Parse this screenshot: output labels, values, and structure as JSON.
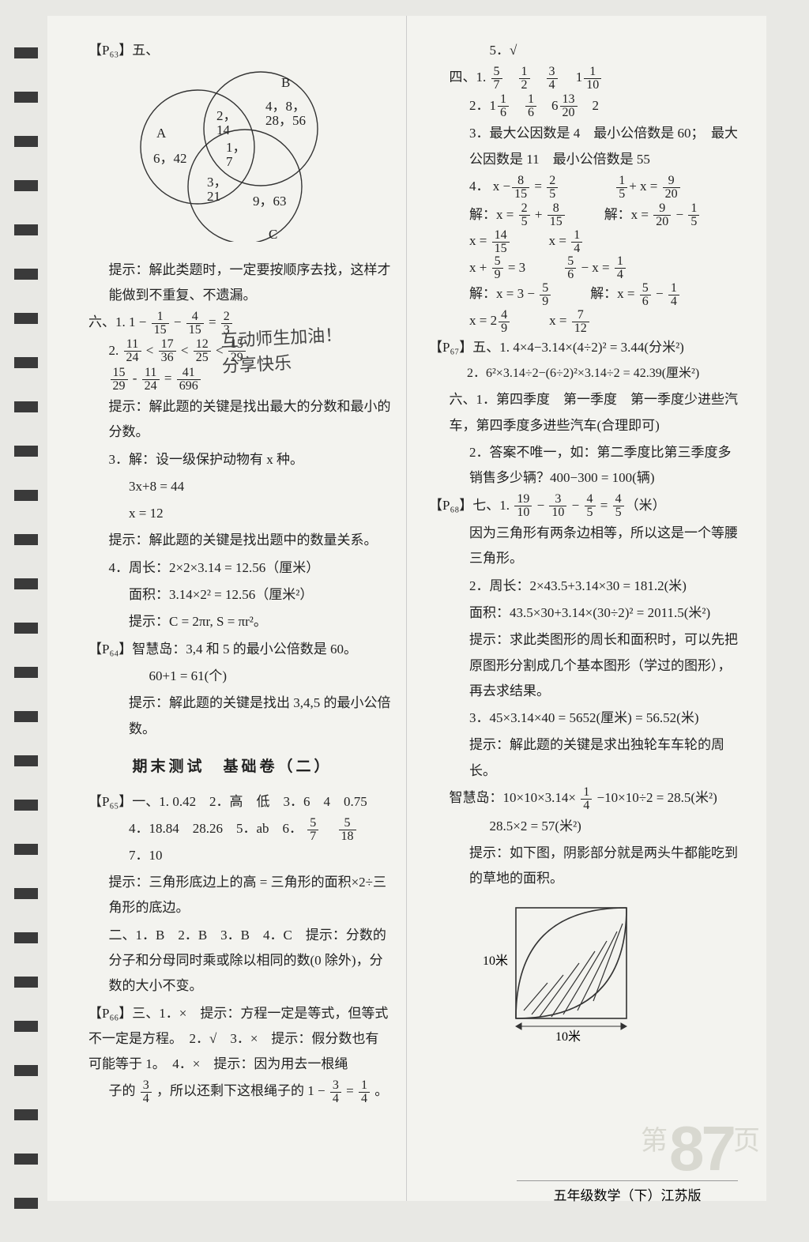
{
  "marks_count": 27,
  "venn": {
    "label_A": "A",
    "label_B": "B",
    "label_C": "C",
    "a_only": "6，42",
    "b_only": "4，8，\n28，56",
    "c_only": "9，63",
    "ab": "2，\n14",
    "ac": "3，\n21",
    "center": "1，\n7",
    "stroke": "#333"
  },
  "left": {
    "p63_tag": "【P₆₃】五、",
    "tip1": "提示：解此类题时，一定要按顺序去找，这样才能做到不重复、不遗漏。",
    "six_label": "六、1.",
    "six1_expr_a": "1",
    "six1_f1n": "1",
    "six1_f1d": "15",
    "six1_f2n": "4",
    "six1_f2d": "15",
    "six1_eq": "=",
    "six1_f3n": "2",
    "six1_f3d": "3",
    "six2_label": "2.",
    "chain_f": [
      {
        "n": "11",
        "d": "24"
      },
      {
        "n": "17",
        "d": "36"
      },
      {
        "n": "12",
        "d": "25"
      },
      {
        "n": "15",
        "d": "29"
      }
    ],
    "chain2_f": [
      {
        "n": "15",
        "d": "29"
      },
      {
        "n": "11",
        "d": "24"
      },
      {
        "n": "41",
        "d": "696"
      }
    ],
    "tip2": "提示：解此题的关键是找出最大的分数和最小的分数。",
    "six3_a": "3．解：设一级保护动物有 x 种。",
    "six3_b": "3x+8 = 44",
    "six3_c": "x = 12",
    "tip3": "提示：解此题的关键是找出题中的数量关系。",
    "six4_a": "4．周长：2×2×3.14 = 12.56（厘米）",
    "six4_b": "面积：3.14×2² = 12.56（厘米²）",
    "six4_c": "提示：C = 2πr, S = πr²。",
    "p64_tag": "【P₆₄】智慧岛",
    "p64_a": "：3,4 和 5 的最小公倍数是 60。",
    "p64_b": "60+1 = 61(个)",
    "p64_c": "提示：解此题的关键是找出 3,4,5 的最小公倍数。",
    "title": "期末测试　基础卷（二）",
    "p65_tag": "【P₆₅】一、1.",
    "p65_row1": "0.42　2．高　低　3．6　4　0.75",
    "p65_row2_a": "4．18.84　28.26　5．ab　6．",
    "p65_r2_f1n": "5",
    "p65_r2_f1d": "7",
    "p65_r2_f2n": "5",
    "p65_r2_f2d": "18",
    "p65_r2_tail": "　7．10",
    "p65_tip": "提示：三角形底边上的高 = 三角形的面积×2÷三角形的底边。",
    "p65_two": "二、1．B　2．B　3．B　4．C　提示：分数的分子和分母同时乘或除以相同的数(0 除外)，分数的大小不变。",
    "p66_tag": "【P₆₆】三、1．×",
    "p66_a": "　提示：方程一定是等式，但等式不一定是方程。　2．√　3．×　提示：假分数也有可能等于 1。　4．×　提示：因为用去一根绳",
    "p66_b_a": "子的",
    "p66_b_f1n": "3",
    "p66_b_f1d": "4",
    "p66_b_mid": "，所以还剩下这根绳子的 1 −",
    "p66_b_f2n": "3",
    "p66_b_f2d": "4",
    "p66_b_eq": " = ",
    "p66_b_f3n": "1",
    "p66_b_f3d": "4",
    "p66_b_end": "。"
  },
  "right": {
    "five": "5．√",
    "four_label": "四、1.",
    "f4_1": [
      {
        "n": "5",
        "d": "7"
      },
      {
        "n": "1",
        "d": "2"
      },
      {
        "n": "3",
        "d": "4"
      }
    ],
    "f4_1_tail_a": "1",
    "f4_1_tail_n": "1",
    "f4_1_tail_d": "10",
    "f4_2_a": "2．1",
    "f4_2": [
      {
        "n": "1",
        "d": "6"
      },
      {
        "n": "1",
        "d": "6"
      }
    ],
    "f4_2_b": "6",
    "f4_2_c_n": "13",
    "f4_2_c_d": "20",
    "f4_2_tail": "　2",
    "f4_3": "3．最大公因数是 4　最小公倍数是 60；　最大公因数是 11　最小公倍数是 55",
    "eq4_label": "4．",
    "eqs": {
      "l1a_pre": "x −",
      "l1a_f1": {
        "n": "8",
        "d": "15"
      },
      "l1a_mid": " = ",
      "l1a_f2": {
        "n": "2",
        "d": "5"
      },
      "l1b_f1": {
        "n": "1",
        "d": "5"
      },
      "l1b_mid": "+ x = ",
      "l1b_f2": {
        "n": "9",
        "d": "20"
      },
      "l2a_pre": "解：x = ",
      "l2a_f1": {
        "n": "2",
        "d": "5"
      },
      "l2a_mid": " + ",
      "l2a_f2": {
        "n": "8",
        "d": "15"
      },
      "l2b_pre": "解：x = ",
      "l2b_f1": {
        "n": "9",
        "d": "20"
      },
      "l2b_mid": " − ",
      "l2b_f2": {
        "n": "1",
        "d": "5"
      },
      "l3a_pre": "x = ",
      "l3a_f": {
        "n": "14",
        "d": "15"
      },
      "l3b_pre": "x = ",
      "l3b_f": {
        "n": "1",
        "d": "4"
      },
      "l4a_pre": "x + ",
      "l4a_f1": {
        "n": "5",
        "d": "9"
      },
      "l4a_mid": " = 3",
      "l4b_f1": {
        "n": "5",
        "d": "6"
      },
      "l4b_mid": " − x = ",
      "l4b_f2": {
        "n": "1",
        "d": "4"
      },
      "l5a_pre": "解：x = 3 − ",
      "l5a_f": {
        "n": "5",
        "d": "9"
      },
      "l5b_pre": "解：x = ",
      "l5b_f1": {
        "n": "5",
        "d": "6"
      },
      "l5b_mid": " − ",
      "l5b_f2": {
        "n": "1",
        "d": "4"
      },
      "l6a_pre": "x = 2",
      "l6a_f": {
        "n": "4",
        "d": "9"
      },
      "l6b_pre": "x = ",
      "l6b_f": {
        "n": "7",
        "d": "12"
      }
    },
    "p67_tag": "【P₆₇】五、1.",
    "p67_1": "4×4−3.14×(4÷2)² = 3.44(分米²)",
    "p67_2": "2．6²×3.14÷2−(6÷2)²×3.14÷2 = 42.39(厘米²)",
    "p67_six": "六、1．第四季度　第一季度　第一季度少进些汽车，第四季度多进些汽车(合理即可)",
    "p67_six2": "2．答案不唯一，如：第二季度比第三季度多销售多少辆？400−300 = 100(辆)",
    "p68_tag": "【P₆₈】七、1.",
    "p68_1_f": [
      {
        "n": "19",
        "d": "10"
      },
      {
        "n": "3",
        "d": "10"
      },
      {
        "n": "4",
        "d": "5"
      },
      {
        "n": "4",
        "d": "5"
      }
    ],
    "p68_1_tail": "（米）",
    "p68_1b": "因为三角形有两条边相等，所以这是一个等腰三角形。",
    "p68_2a": "2．周长：2×43.5+3.14×30 = 181.2(米)",
    "p68_2b": "面积：43.5×30+3.14×(30÷2)² = 2011.5(米²)",
    "p68_tip": "提示：求此类图形的周长和面积时，可以先把原图形分割成几个基本图形（学过的图形），再去求结果。",
    "p68_3": "3．45×3.14×40 = 5652(厘米) = 56.52(米)",
    "p68_3tip": "提示：解此题的关键是求出独轮车车轮的周长。",
    "zhd_label": "智慧岛：",
    "zhd_a": "10×10×3.14×",
    "zhd_f": {
      "n": "1",
      "d": "4"
    },
    "zhd_b": "−10×10÷2 = 28.5(米²)",
    "zhd_c": "28.5×2 = 57(米²)",
    "zhd_tip": "提示：如下图，阴影部分就是两头牛都能吃到的草地的面积。",
    "leaf": {
      "side": "10米",
      "stroke": "#333",
      "w": 150,
      "h": 150
    }
  },
  "handwriting": "互动师生加油！\n分享快乐",
  "page_number": "87",
  "page_zh_left": "第",
  "page_zh_right": "页",
  "footer": "五年级数学（下）江苏版"
}
